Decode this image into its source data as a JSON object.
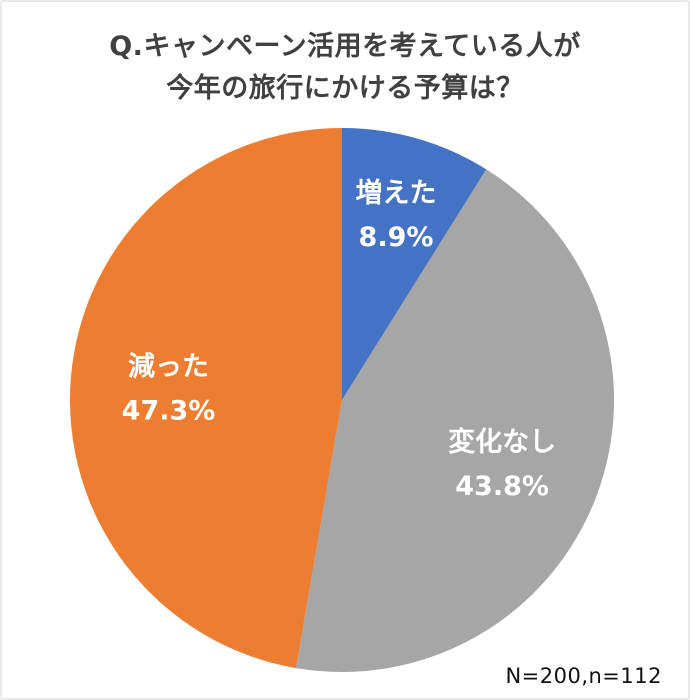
{
  "title": {
    "line1": "Q.キャンペーン活用を考えている人が",
    "line2": "今年の旅行にかける予算は？"
  },
  "footnote": "N=200,n=112",
  "colors": {
    "title_text": "#404040",
    "slice_label_text": "#ffffff"
  },
  "chart_data": {
    "type": "pie",
    "title": "Q.キャンペーン活用を考えている人が今年の旅行にかける予算は？",
    "slices": [
      {
        "label": "増えた",
        "value": 8.9,
        "pct_label": "8.9%",
        "color": "#4472c4",
        "label_radius_frac": 0.72
      },
      {
        "label": "変化なし",
        "value": 43.8,
        "pct_label": "43.8%",
        "color": "#a6a6a6",
        "label_radius_frac": 0.63
      },
      {
        "label": "減った",
        "value": 47.3,
        "pct_label": "47.3%",
        "color": "#ed7d31",
        "label_radius_frac": 0.64
      }
    ],
    "start_angle_deg": 0,
    "direction": "clockwise",
    "legend": "none",
    "note": "N=200,n=112"
  }
}
